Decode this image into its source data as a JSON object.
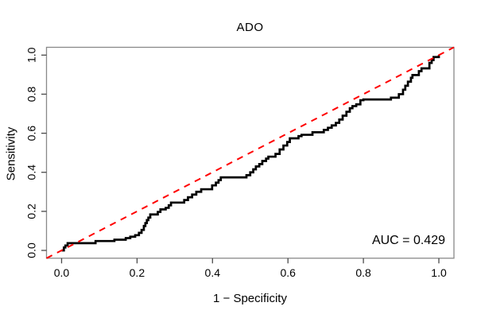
{
  "colors": {
    "curve": "#000000",
    "reference_line": "#ff0000",
    "box": "#898989",
    "tick": "#4a4a4a",
    "text": "#000000"
  },
  "chart_data": {
    "type": "line",
    "subtype": "roc-step-curve",
    "title": "ADO",
    "xlabel": "1 − Specificity",
    "ylabel": "Sensitivity",
    "xlim": [
      -0.04,
      1.04
    ],
    "ylim": [
      -0.04,
      1.04
    ],
    "x_ticks": [
      0.0,
      0.2,
      0.4,
      0.6,
      0.8,
      1.0
    ],
    "y_ticks": [
      0.0,
      0.2,
      0.4,
      0.6,
      0.8,
      1.0
    ],
    "x_tick_labels": [
      "0.0",
      "0.2",
      "0.4",
      "0.6",
      "0.8",
      "1.0"
    ],
    "y_tick_labels": [
      "0.0",
      "0.2",
      "0.4",
      "0.6",
      "0.8",
      "1.0"
    ],
    "grid": false,
    "legend": "none",
    "annotation": {
      "text": "AUC = 0.429",
      "value": 0.429,
      "position": "bottom-right"
    },
    "series": [
      {
        "name": "ROC curve",
        "style": "step",
        "color": "#000000",
        "width": 2.7,
        "points": [
          [
            0.0,
            0.0
          ],
          [
            0.006,
            0.015
          ],
          [
            0.01,
            0.025
          ],
          [
            0.016,
            0.037
          ],
          [
            0.09,
            0.048
          ],
          [
            0.14,
            0.055
          ],
          [
            0.17,
            0.063
          ],
          [
            0.182,
            0.07
          ],
          [
            0.195,
            0.078
          ],
          [
            0.205,
            0.09
          ],
          [
            0.212,
            0.105
          ],
          [
            0.218,
            0.125
          ],
          [
            0.222,
            0.14
          ],
          [
            0.226,
            0.155
          ],
          [
            0.23,
            0.168
          ],
          [
            0.235,
            0.184
          ],
          [
            0.255,
            0.197
          ],
          [
            0.262,
            0.21
          ],
          [
            0.276,
            0.218
          ],
          [
            0.284,
            0.231
          ],
          [
            0.29,
            0.245
          ],
          [
            0.325,
            0.258
          ],
          [
            0.335,
            0.272
          ],
          [
            0.346,
            0.286
          ],
          [
            0.357,
            0.3
          ],
          [
            0.37,
            0.313
          ],
          [
            0.399,
            0.333
          ],
          [
            0.409,
            0.347
          ],
          [
            0.416,
            0.36
          ],
          [
            0.422,
            0.374
          ],
          [
            0.49,
            0.385
          ],
          [
            0.5,
            0.4
          ],
          [
            0.508,
            0.415
          ],
          [
            0.515,
            0.43
          ],
          [
            0.524,
            0.442
          ],
          [
            0.532,
            0.458
          ],
          [
            0.542,
            0.47
          ],
          [
            0.548,
            0.48
          ],
          [
            0.567,
            0.494
          ],
          [
            0.578,
            0.517
          ],
          [
            0.588,
            0.537
          ],
          [
            0.598,
            0.555
          ],
          [
            0.605,
            0.574
          ],
          [
            0.628,
            0.585
          ],
          [
            0.636,
            0.592
          ],
          [
            0.665,
            0.605
          ],
          [
            0.695,
            0.617
          ],
          [
            0.706,
            0.628
          ],
          [
            0.716,
            0.64
          ],
          [
            0.727,
            0.653
          ],
          [
            0.736,
            0.67
          ],
          [
            0.745,
            0.69
          ],
          [
            0.755,
            0.71
          ],
          [
            0.764,
            0.728
          ],
          [
            0.771,
            0.739
          ],
          [
            0.781,
            0.748
          ],
          [
            0.792,
            0.769
          ],
          [
            0.8,
            0.773
          ],
          [
            0.873,
            0.782
          ],
          [
            0.894,
            0.8
          ],
          [
            0.905,
            0.823
          ],
          [
            0.911,
            0.843
          ],
          [
            0.918,
            0.864
          ],
          [
            0.926,
            0.884
          ],
          [
            0.93,
            0.898
          ],
          [
            0.947,
            0.918
          ],
          [
            0.954,
            0.932
          ],
          [
            0.975,
            0.96
          ],
          [
            0.981,
            0.975
          ],
          [
            0.986,
            0.99
          ],
          [
            1.0,
            1.0
          ]
        ]
      },
      {
        "name": "Reference diagonal",
        "style": "dashed",
        "color": "#ff0000",
        "width": 2,
        "dash": [
          8,
          7
        ],
        "points": [
          [
            -0.04,
            -0.04
          ],
          [
            1.04,
            1.04
          ]
        ]
      }
    ]
  }
}
